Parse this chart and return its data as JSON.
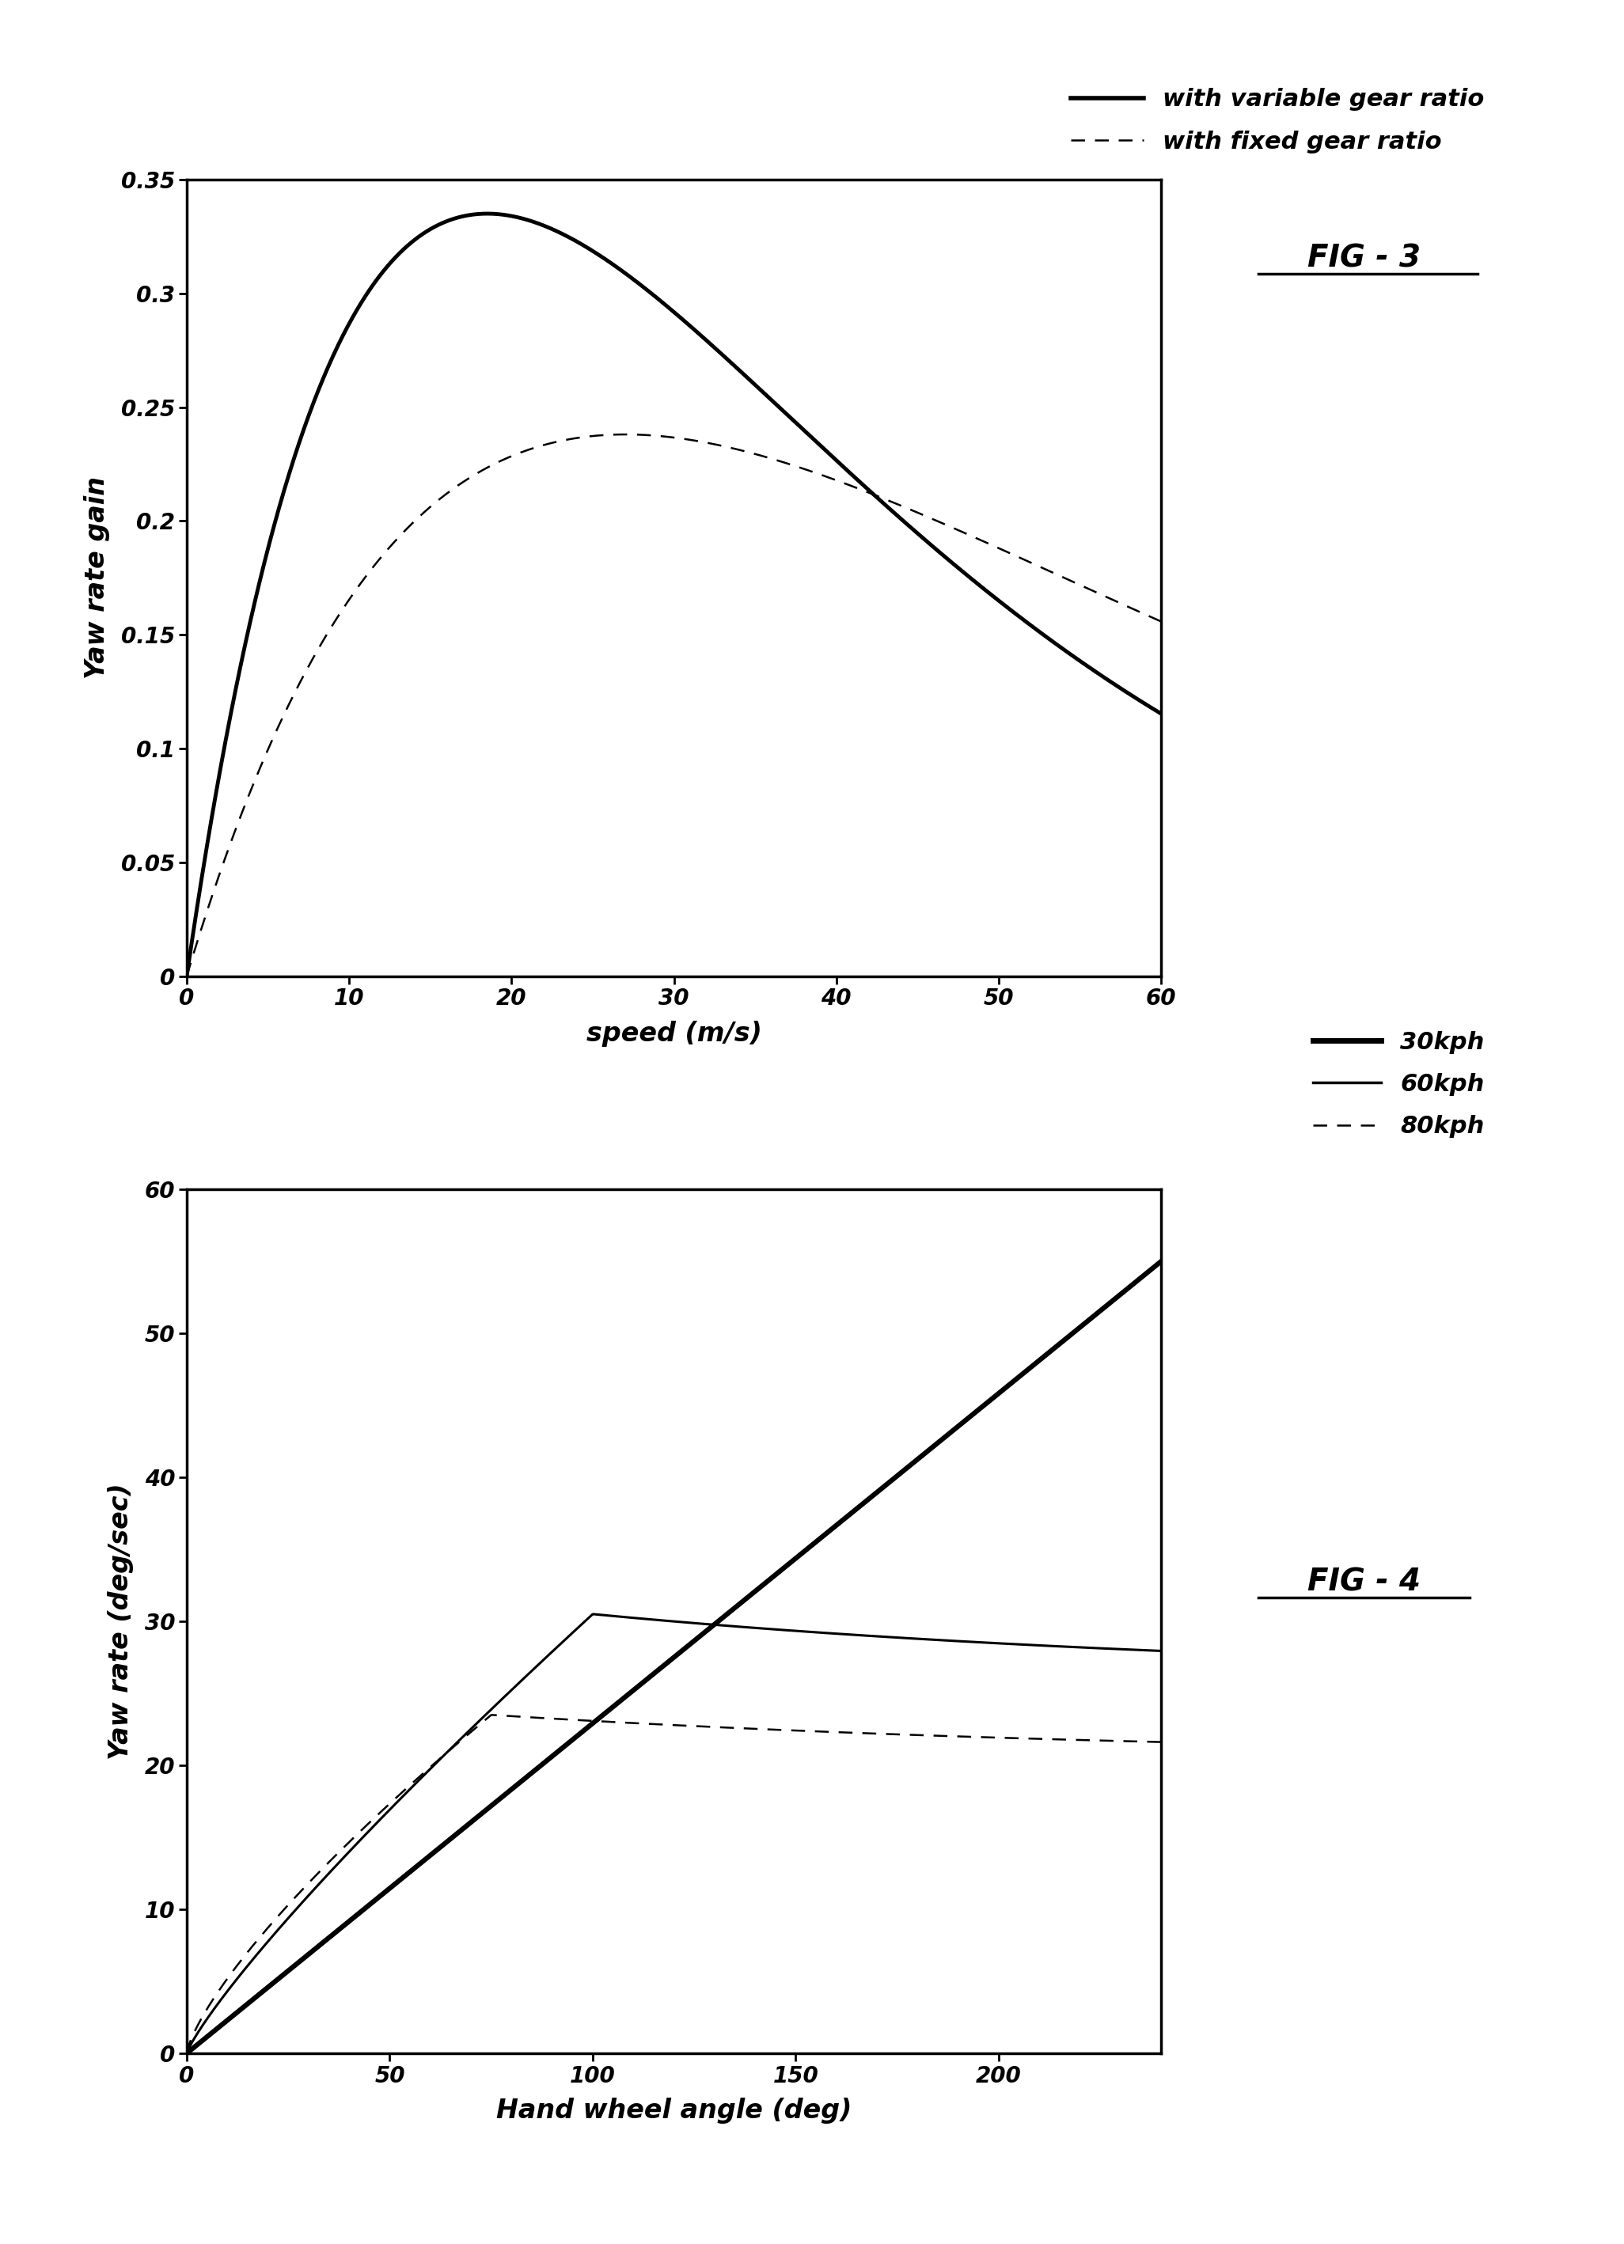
{
  "fig3": {
    "title": "FIG - 3",
    "xlabel": "speed (m/s)",
    "ylabel": "Yaw rate gain",
    "xlim": [
      0,
      60
    ],
    "ylim": [
      0,
      0.35
    ],
    "xticks": [
      0,
      10,
      20,
      30,
      40,
      50,
      60
    ],
    "yticks": [
      0,
      0.05,
      0.1,
      0.15,
      0.2,
      0.25,
      0.3,
      0.35
    ],
    "legend1": "with variable gear ratio",
    "legend2": "with fixed gear ratio",
    "var_peak_x": 18.5,
    "var_peak_y": 0.335,
    "fix_peak_x": 27,
    "fix_peak_y": 0.238,
    "var_end_y": 0.155,
    "fix_end_y": 0.172
  },
  "fig4": {
    "title": "FIG - 4",
    "xlabel": "Hand wheel angle (deg)",
    "ylabel": "Yaw rate (deg/sec)",
    "xlim": [
      0,
      240
    ],
    "ylim": [
      0,
      60
    ],
    "xticks": [
      0,
      50,
      100,
      150,
      200
    ],
    "yticks": [
      0,
      10,
      20,
      30,
      40,
      50,
      60
    ],
    "legend1": "30kph",
    "legend2": "60kph",
    "legend3": "80kph"
  },
  "background_color": "#ffffff",
  "line_color": "#000000"
}
